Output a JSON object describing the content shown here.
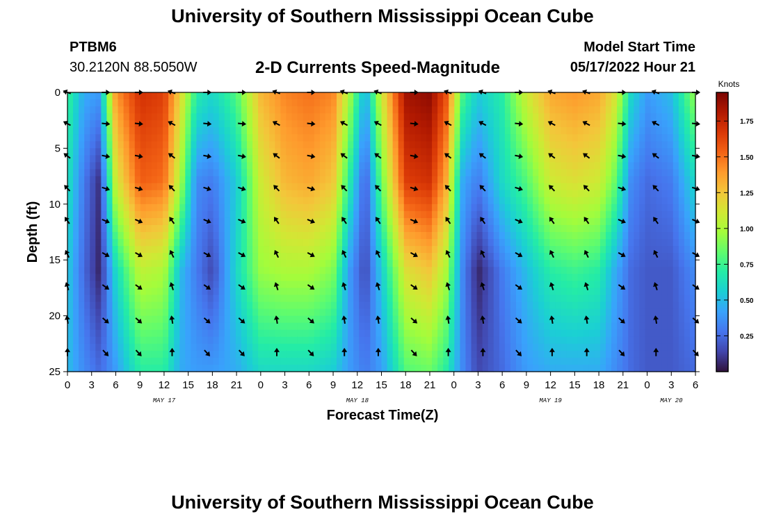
{
  "page_title": "University of Southern Mississippi Ocean Cube",
  "page_title_repeat": "University of Southern Mississippi Ocean Cube",
  "station": {
    "name": "PTBM6",
    "coords": "30.2120N  88.5050W"
  },
  "product_title": "2-D Currents Speed-Magnitude",
  "model_start": {
    "label": "Model Start Time",
    "value": "05/17/2022 Hour 21"
  },
  "chart_data": {
    "type": "heatmap",
    "title": "2-D Currents Speed-Magnitude",
    "xlabel": "Forecast Time(Z)",
    "ylabel": "Depth (ft)",
    "x_range_hours": [
      0,
      78
    ],
    "ylim": [
      0,
      25
    ],
    "y_inverted": true,
    "y_ticks": [
      "0",
      "5",
      "10",
      "15",
      "20",
      "25"
    ],
    "x_tick_labels": [
      "0",
      "3",
      "6",
      "9",
      "12",
      "15",
      "18",
      "21",
      "0",
      "3",
      "6",
      "9",
      "12",
      "15",
      "18",
      "21",
      "0",
      "3",
      "6",
      "9",
      "12",
      "15",
      "18",
      "21",
      "0",
      "3",
      "6"
    ],
    "date_labels": [
      {
        "label": "MAY 17",
        "hour": 12
      },
      {
        "label": "MAY 18",
        "hour": 36
      },
      {
        "label": "MAY 19",
        "hour": 60
      },
      {
        "label": "MAY 20",
        "hour": 75
      }
    ],
    "colorbar": {
      "label": "Knots",
      "min": 0,
      "max": 1.95,
      "ticks": [
        "1.75",
        "1.50",
        "1.25",
        "1.00",
        "0.75",
        "0.50",
        "0.25"
      ],
      "tick_values": [
        1.75,
        1.5,
        1.25,
        1.0,
        0.75,
        0.5,
        0.25
      ],
      "colors": [
        "#30123b",
        "#4145ab",
        "#4675ed",
        "#39a2fc",
        "#1bcfd4",
        "#24eca6",
        "#61fc6c",
        "#a4fc3b",
        "#d1e834",
        "#f3c63a",
        "#fe9b2d",
        "#f36315",
        "#d93806",
        "#b11901",
        "#7a0402"
      ]
    },
    "speed_profiles": [
      {
        "hour": 0,
        "speeds": [
          0.75,
          0.65,
          0.55,
          0.5
        ]
      },
      {
        "hour": 2,
        "speeds": [
          0.45,
          0.3,
          0.25,
          0.35
        ]
      },
      {
        "hour": 4,
        "speeds": [
          0.4,
          0.08,
          0.05,
          0.25
        ]
      },
      {
        "hour": 6,
        "speeds": [
          1.4,
          1.1,
          0.6,
          0.4
        ]
      },
      {
        "hour": 9,
        "speeds": [
          1.7,
          1.55,
          1.05,
          0.7
        ]
      },
      {
        "hour": 12,
        "speeds": [
          1.65,
          1.5,
          1.0,
          0.7
        ]
      },
      {
        "hour": 14,
        "speeds": [
          1.2,
          1.0,
          0.5,
          0.45
        ]
      },
      {
        "hour": 16,
        "speeds": [
          0.7,
          0.35,
          0.3,
          0.4
        ]
      },
      {
        "hour": 18,
        "speeds": [
          0.6,
          0.3,
          0.15,
          0.4
        ]
      },
      {
        "hour": 21,
        "speeds": [
          0.8,
          0.55,
          0.6,
          0.45
        ]
      },
      {
        "hour": 24,
        "speeds": [
          1.3,
          1.1,
          0.95,
          0.6
        ]
      },
      {
        "hour": 27,
        "speeds": [
          1.45,
          1.3,
          1.0,
          0.6
        ]
      },
      {
        "hour": 30,
        "speeds": [
          1.5,
          1.35,
          1.0,
          0.6
        ]
      },
      {
        "hour": 33,
        "speeds": [
          1.45,
          1.25,
          0.9,
          0.55
        ]
      },
      {
        "hour": 35,
        "speeds": [
          1.0,
          0.7,
          0.4,
          0.4
        ]
      },
      {
        "hour": 37,
        "speeds": [
          0.45,
          0.2,
          0.15,
          0.3
        ]
      },
      {
        "hour": 39,
        "speeds": [
          1.1,
          0.85,
          0.55,
          0.4
        ]
      },
      {
        "hour": 42,
        "speeds": [
          1.85,
          1.65,
          1.15,
          0.8
        ]
      },
      {
        "hour": 45,
        "speeds": [
          1.9,
          1.7,
          1.25,
          0.85
        ]
      },
      {
        "hour": 47,
        "speeds": [
          1.6,
          1.35,
          1.0,
          0.7
        ]
      },
      {
        "hour": 49,
        "speeds": [
          0.8,
          0.45,
          0.35,
          0.35
        ]
      },
      {
        "hour": 51,
        "speeds": [
          0.55,
          0.3,
          0.05,
          0.15
        ]
      },
      {
        "hour": 54,
        "speeds": [
          0.7,
          0.6,
          0.3,
          0.25
        ]
      },
      {
        "hour": 57,
        "speeds": [
          1.1,
          0.8,
          0.5,
          0.4
        ]
      },
      {
        "hour": 60,
        "speeds": [
          1.35,
          1.1,
          0.7,
          0.45
        ]
      },
      {
        "hour": 63,
        "speeds": [
          1.4,
          1.15,
          0.75,
          0.45
        ]
      },
      {
        "hour": 66,
        "speeds": [
          1.35,
          1.1,
          0.7,
          0.45
        ]
      },
      {
        "hour": 68,
        "speeds": [
          1.15,
          0.85,
          0.45,
          0.35
        ]
      },
      {
        "hour": 70,
        "speeds": [
          0.6,
          0.35,
          0.25,
          0.25
        ]
      },
      {
        "hour": 72,
        "speeds": [
          0.4,
          0.25,
          0.2,
          0.2
        ]
      },
      {
        "hour": 75,
        "speeds": [
          0.5,
          0.3,
          0.2,
          0.2
        ]
      },
      {
        "hour": 78,
        "speeds": [
          0.95,
          0.6,
          0.35,
          0.25
        ]
      }
    ],
    "profile_depths_ft": [
      0,
      8,
      16,
      25
    ],
    "vector_depths_ft": [
      0,
      2.8,
      5.7,
      8.6,
      11.5,
      14.5,
      17.4,
      20.4,
      23.3
    ],
    "vector_hours": [
      0,
      4.7,
      8.8,
      13,
      17.3,
      21.6,
      26,
      30.2,
      34.4,
      38.6,
      43,
      47.3,
      51.6,
      56,
      60.2,
      64.5,
      68.8,
      73.1,
      78
    ]
  }
}
